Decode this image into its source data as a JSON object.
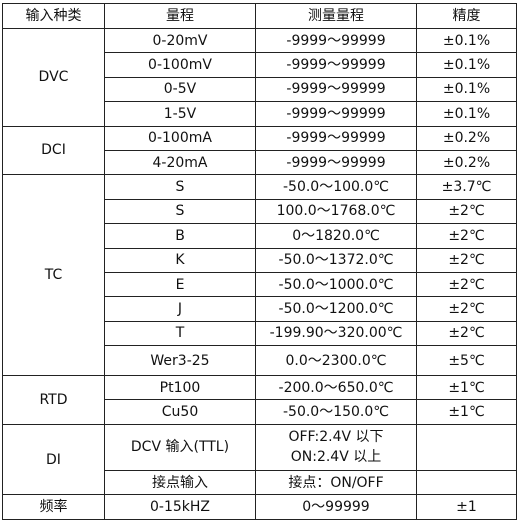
{
  "table": {
    "header": [
      "输入种类",
      "量程",
      "测量量程",
      "精度"
    ],
    "groups": [
      {
        "label": "DVC",
        "rows": [
          [
            "0-20mV",
            "-9999～99999",
            "±0.1%"
          ],
          [
            "0-100mV",
            "-9999～99999",
            "±0.1%"
          ],
          [
            "0-5V",
            "-9999～99999",
            "±0.1%"
          ],
          [
            "1-5V",
            "-9999～99999",
            "±0.1%"
          ]
        ]
      },
      {
        "label": "DCI",
        "rows": [
          [
            "0-100mA",
            "-9999～99999",
            "±0.2%"
          ],
          [
            "4-20mA",
            "-9999～99999",
            "±0.2%"
          ]
        ]
      },
      {
        "label": "TC",
        "rows": [
          [
            "S",
            "-50.0～100.0℃",
            "±3.7℃"
          ],
          [
            "S",
            "100.0～1768.0℃",
            "±2℃"
          ],
          [
            "B",
            "0～1820.0℃",
            "±2℃"
          ],
          [
            "K",
            "-50.0～1372.0℃",
            "±2℃"
          ],
          [
            "E",
            "-50.0～1000.0℃",
            "±2℃"
          ],
          [
            "J",
            "-50.0～1200.0℃",
            "±2℃"
          ],
          [
            "T",
            "-199.90～320.00℃",
            "±2℃"
          ],
          [
            "Wer3-25",
            "0.0～2300.0℃",
            "±5℃"
          ]
        ]
      },
      {
        "label": "RTD",
        "rows": [
          [
            "Pt100",
            "-200.0～650.0℃",
            "±1℃"
          ],
          [
            "Cu50",
            "-50.0～150.0℃",
            "±1℃"
          ]
        ]
      },
      {
        "label": "DI",
        "rows": [
          [
            "DCV 输入(TTL)",
            [
              "OFF:2.4V 以下",
              "ON:2.4V 以上"
            ],
            null
          ],
          [
            "接点输入",
            "接点：ON/OFF",
            null
          ]
        ]
      },
      {
        "label": "频率",
        "rows": [
          [
            "0-15kHZ",
            "0～99999",
            "±1"
          ]
        ]
      }
    ]
  }
}
